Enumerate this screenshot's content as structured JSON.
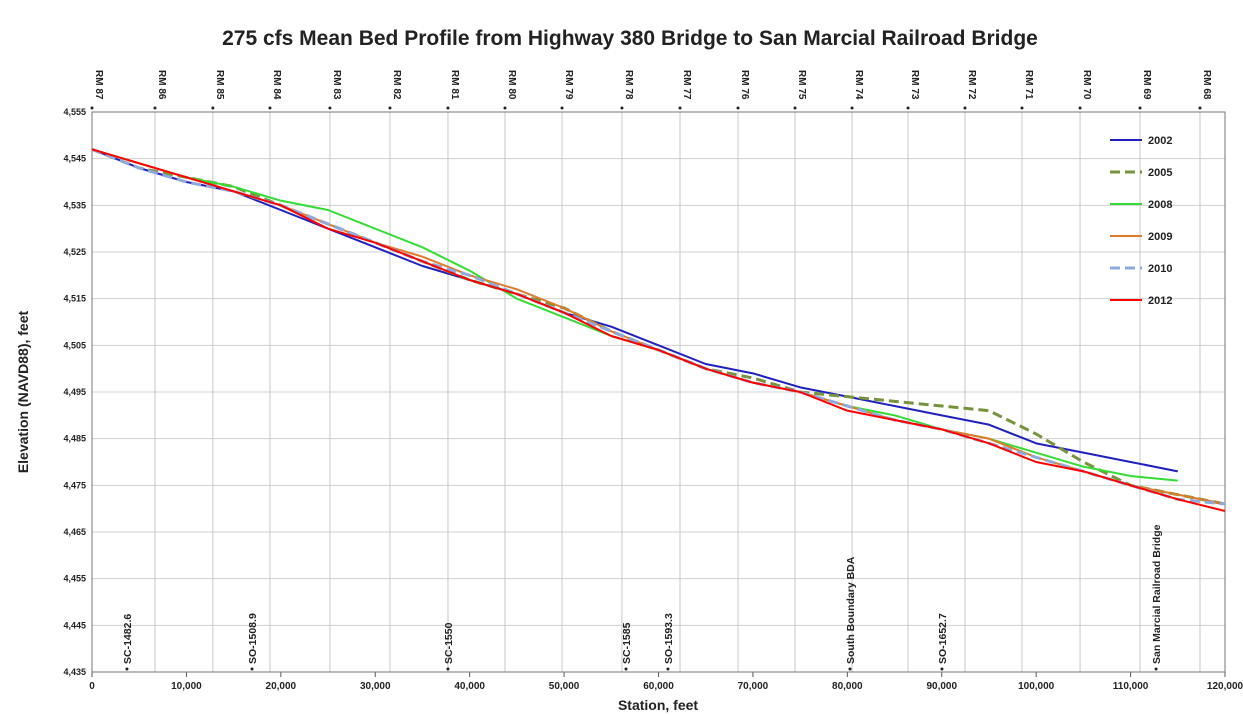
{
  "chart_data": {
    "type": "line",
    "title": "275 cfs Mean Bed Profile from Highway 380 Bridge to San Marcial Railroad Bridge",
    "xlabel": "Station, feet",
    "ylabel": "Elevation (NAVD88), feet",
    "x": [
      0,
      5000,
      10000,
      15000,
      20000,
      25000,
      30000,
      35000,
      40000,
      45000,
      50000,
      55000,
      60000,
      65000,
      70000,
      75000,
      80000,
      85000,
      90000,
      95000,
      100000,
      105000,
      110000,
      115000,
      120000
    ],
    "series": [
      {
        "name": "2002",
        "color": "#2020c0",
        "style": "solid",
        "values": [
          4547,
          4543,
          4540,
          4538,
          4534,
          4530,
          4526,
          4522,
          4519,
          4516,
          4512,
          4509,
          4505,
          4501,
          4499,
          4496,
          4494,
          4492,
          4490,
          4488,
          4484,
          4482,
          4480,
          4478,
          null
        ]
      },
      {
        "name": "2005",
        "color": "#77933c",
        "style": "dashed",
        "values": [
          4547,
          4543,
          4541,
          4539,
          4535,
          4531,
          4527,
          4523,
          4519,
          4516,
          4513,
          4508,
          4504,
          4500,
          4498,
          4495,
          4494,
          4493,
          4492,
          4491,
          4486,
          4480,
          4475,
          4473,
          4471
        ]
      },
      {
        "name": "2008",
        "color": "#33dd33",
        "style": "solid",
        "values": [
          4547,
          4544,
          4541,
          4539,
          4536,
          4534,
          4530,
          4526,
          4521,
          4515,
          4511,
          4507,
          4504,
          4500,
          4497,
          4495,
          4492,
          4490,
          4487,
          4485,
          4482,
          4479,
          4477,
          4476,
          null
        ]
      },
      {
        "name": "2009",
        "color": "#e07b2a",
        "style": "solid",
        "values": [
          4547,
          4544,
          4541,
          4538,
          4535,
          4531,
          4527,
          4524,
          4520,
          4517,
          4513,
          4508,
          4504,
          4500,
          4497,
          4495,
          4492,
          4489,
          4487,
          4485,
          4481,
          4478,
          4475,
          4473,
          4471
        ]
      },
      {
        "name": "2010",
        "color": "#8ea9db",
        "style": "dashed",
        "values": [
          4547,
          4543,
          4540,
          4538,
          4535,
          4531,
          4527,
          4523,
          4520,
          4516,
          4512,
          4508,
          4504,
          4500,
          4497,
          4495,
          4492,
          4489,
          4487,
          4484,
          4481,
          4478,
          4475,
          4472,
          4471
        ]
      },
      {
        "name": "2012",
        "color": "#ff0000",
        "style": "solid",
        "values": [
          4547,
          4544,
          4541,
          4538,
          4535,
          4530,
          4527,
          4523,
          4519,
          4516,
          4512,
          4507,
          4504,
          4500,
          4497,
          4495,
          4491,
          4489,
          4487,
          4484,
          4480,
          4478,
          4475,
          4472,
          4469.5
        ]
      }
    ],
    "xlim": [
      0,
      120000
    ],
    "ylim": [
      4435,
      4555
    ],
    "xticks": [
      0,
      {
        "value": 10000,
        "label": "10,000"
      },
      {
        "value": 20000,
        "label": "20,000"
      },
      {
        "value": 30000,
        "label": "30,000"
      },
      {
        "value": 40000,
        "label": "40,000"
      },
      {
        "value": 50000,
        "label": "50,000"
      },
      {
        "value": 60000,
        "label": "60,000"
      },
      {
        "value": 70000,
        "label": "70,000"
      },
      {
        "value": 80000,
        "label": "80,000"
      },
      {
        "value": 90000,
        "label": "90,000"
      },
      {
        "value": 100000,
        "label": "100,000"
      },
      {
        "value": 110000,
        "label": "110,000"
      },
      {
        "value": 120000,
        "label": "120,000"
      }
    ],
    "yticks": [
      {
        "value": 4435,
        "label": "4,435"
      },
      {
        "value": 4445,
        "label": "4,445"
      },
      {
        "value": 4455,
        "label": "4,455"
      },
      {
        "value": 4465,
        "label": "4,465"
      },
      {
        "value": 4475,
        "label": "4,475"
      },
      {
        "value": 4485,
        "label": "4,485"
      },
      {
        "value": 4495,
        "label": "4,495"
      },
      {
        "value": 4505,
        "label": "4,505"
      },
      {
        "value": 4515,
        "label": "4,515"
      },
      {
        "value": 4525,
        "label": "4,525"
      },
      {
        "value": 4535,
        "label": "4,535"
      },
      {
        "value": 4545,
        "label": "4,545"
      },
      {
        "value": 4555,
        "label": "4,555"
      }
    ],
    "top_axis": [
      {
        "label": "RM 87",
        "x": 0
      },
      {
        "label": "RM 86",
        "x": 6670
      },
      {
        "label": "RM 85",
        "x": 12800
      },
      {
        "label": "RM 84",
        "x": 18850
      },
      {
        "label": "RM 83",
        "x": 25200
      },
      {
        "label": "RM 82",
        "x": 31560
      },
      {
        "label": "RM 81",
        "x": 37700
      },
      {
        "label": "RM 80",
        "x": 43740
      },
      {
        "label": "RM 79",
        "x": 49780
      },
      {
        "label": "RM 78",
        "x": 56130
      },
      {
        "label": "RM 77",
        "x": 62280
      },
      {
        "label": "RM 76",
        "x": 68420
      },
      {
        "label": "RM 75",
        "x": 74460
      },
      {
        "label": "RM 74",
        "x": 80500
      },
      {
        "label": "RM 73",
        "x": 86430
      },
      {
        "label": "RM 72",
        "x": 92460
      },
      {
        "label": "RM 71",
        "x": 98500
      },
      {
        "label": "RM 70",
        "x": 104650
      },
      {
        "label": "RM 69",
        "x": 111000
      },
      {
        "label": "RM 68",
        "x": 117350
      }
    ],
    "annotations": [
      {
        "text": "SC-1482.6",
        "x": 3700
      },
      {
        "text": "SO-1508.9",
        "x": 16950
      },
      {
        "text": "SC-1550",
        "x": 37700
      },
      {
        "text": "SC-1585",
        "x": 56560
      },
      {
        "text": "SO-1593.3",
        "x": 61000
      },
      {
        "text": "South Boundary BDA",
        "x": 80280
      },
      {
        "text": "SO-1652.7",
        "x": 90020
      },
      {
        "text": "San Marcial Railroad Bridge",
        "x": 112700
      }
    ],
    "grid": true,
    "legend": "right"
  }
}
